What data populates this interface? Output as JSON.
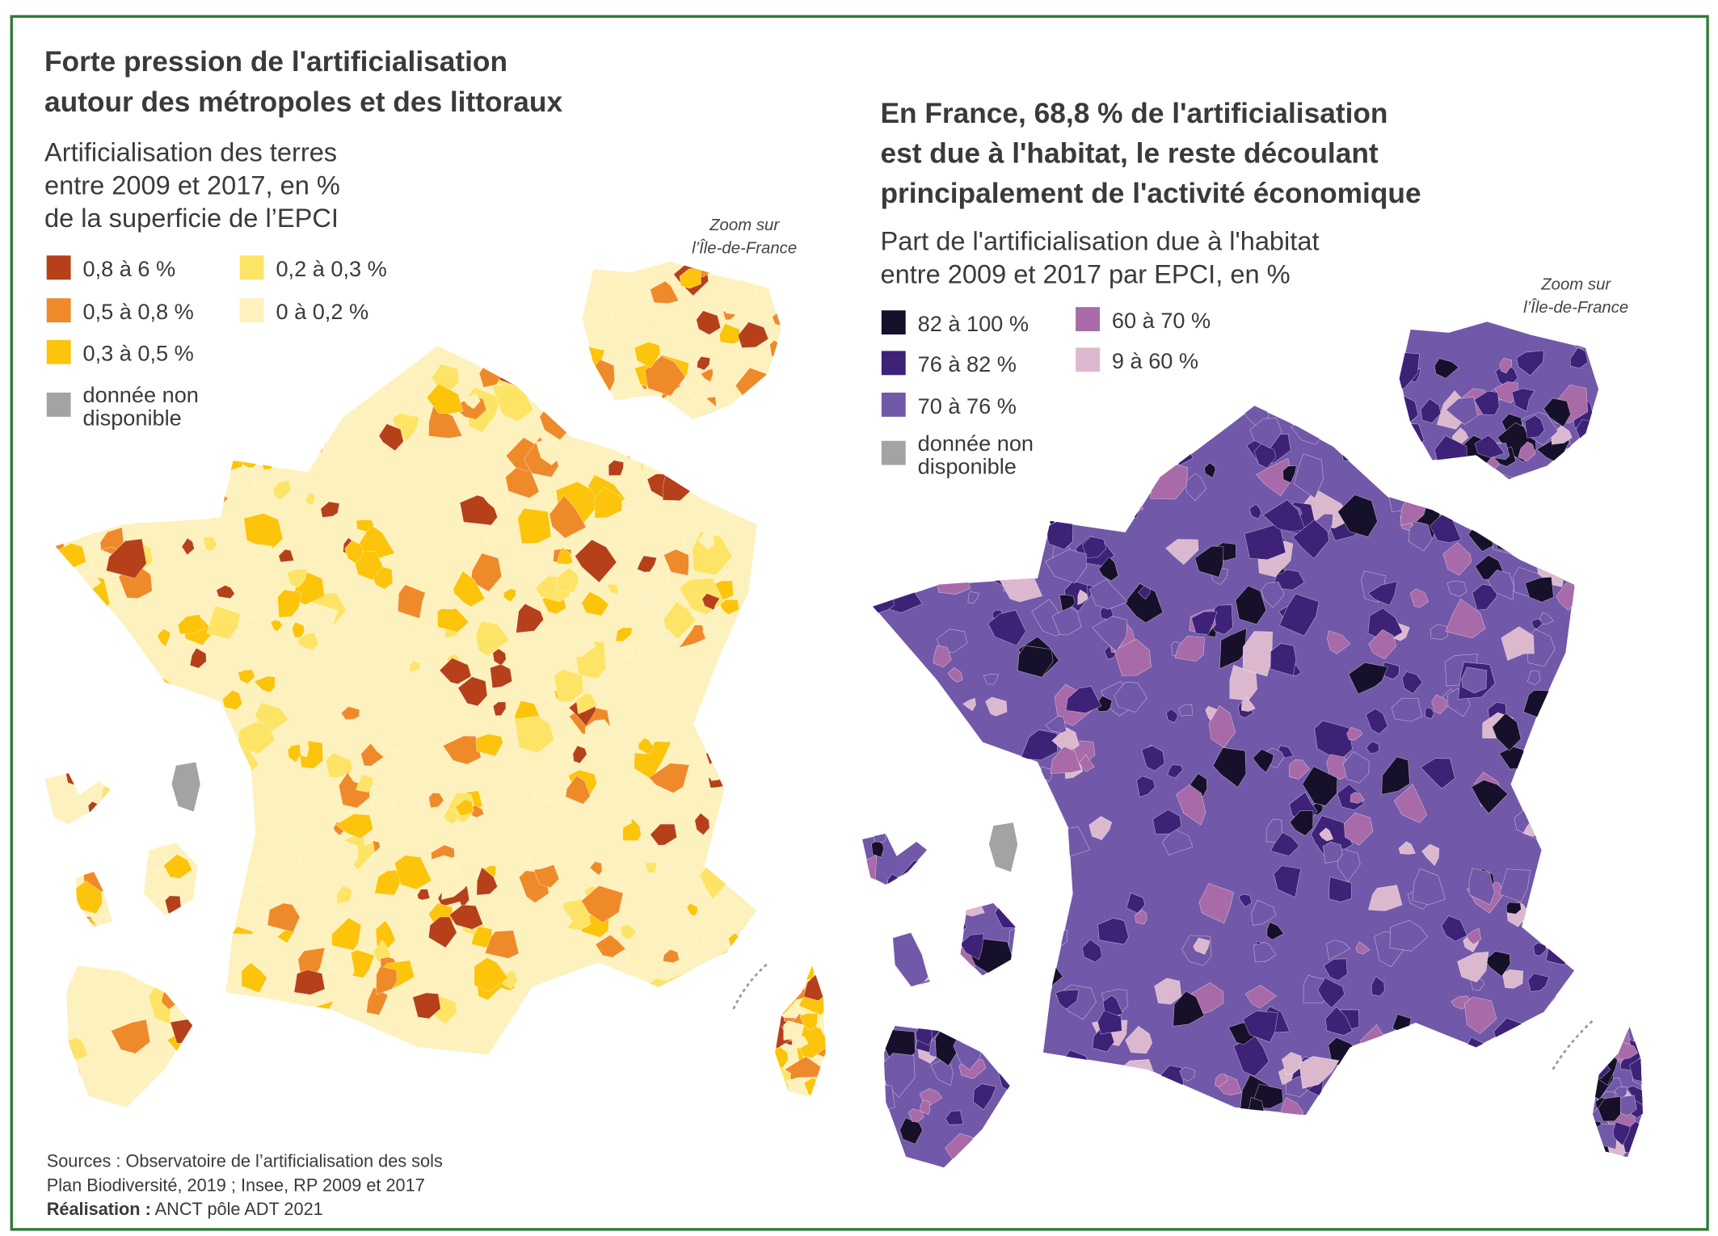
{
  "left_map": {
    "title": [
      "Forte pression de l'artificialisation",
      "autour des métropoles et des littoraux"
    ],
    "subtitle": [
      "Artificialisation des terres",
      "entre 2009 et 2017, en %",
      "de la superficie de l’EPCI"
    ],
    "legend": [
      {
        "label": [
          "0,8 à 6 %"
        ],
        "color": "#b5401a"
      },
      {
        "label": [
          "0,5 à 0,8 %"
        ],
        "color": "#ef8a2a"
      },
      {
        "label": [
          "0,3 à 0,5 %"
        ],
        "color": "#fcc40a"
      },
      {
        "label": [
          "0,2 à 0,3 %"
        ],
        "color": "#fde466"
      },
      {
        "label": [
          "0 à 0,2 %"
        ],
        "color": "#fdf1bd"
      },
      {
        "label": [
          "donnée non",
          "disponible"
        ],
        "color": "#a3a3a3"
      }
    ],
    "zoom_note": [
      "Zoom sur",
      "l’Île-de-France"
    ]
  },
  "right_map": {
    "title": [
      "En France, 68,8 % de l'artificialisation",
      "est due à l'habitat, le reste découlant",
      "principalement de l'activité économique"
    ],
    "subtitle": [
      "Part de l'artificialisation due à l'habitat",
      "entre 2009 et 2017 par EPCI, en %"
    ],
    "legend": [
      {
        "label": [
          "82 à 100 %"
        ],
        "color": "#17102b"
      },
      {
        "label": [
          "76 à 82 %"
        ],
        "color": "#3d2278"
      },
      {
        "label": [
          "70 à 76 %"
        ],
        "color": "#7258a8"
      },
      {
        "label": [
          "60 à 70 %"
        ],
        "color": "#a86aa8"
      },
      {
        "label": [
          "9 à 60 %"
        ],
        "color": "#dcb8cf"
      },
      {
        "label": [
          "donnée non",
          "disponible"
        ],
        "color": "#a3a3a3"
      }
    ],
    "zoom_note": [
      "Zoom sur",
      "l’Île-de-France"
    ]
  },
  "sources": {
    "lines": [
      "Sources : Observatoire de l’artificialisation des sols",
      "Plan Biodiversité, 2019 ; Insee, RP 2009 et 2017"
    ],
    "credit_label": "Réalisation :",
    "credit_text": "ANCT pôle ADT 2021"
  }
}
